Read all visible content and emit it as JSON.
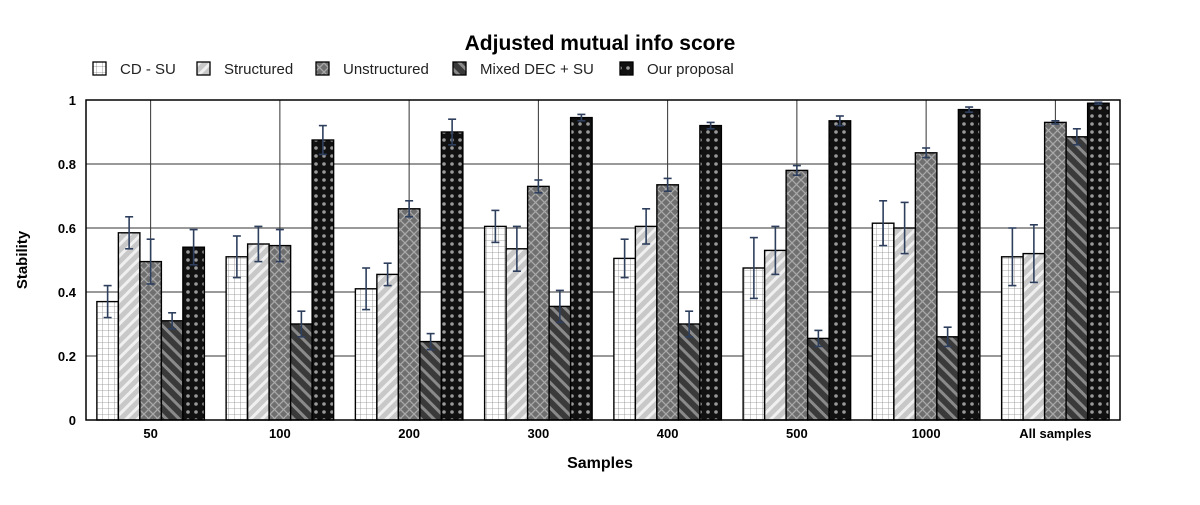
{
  "chart_data": {
    "type": "bar",
    "title": "Adjusted mutual info score",
    "xlabel": "Samples",
    "ylabel": "Stability",
    "ylim": [
      0,
      1
    ],
    "yticks": [
      0,
      0.2,
      0.4,
      0.6,
      0.8,
      1
    ],
    "ytick_labels": [
      "0",
      "0.2",
      "0.4",
      "0.6",
      "0.8",
      "1"
    ],
    "grid": true,
    "legend_position": "top-left",
    "categories": [
      "50",
      "100",
      "200",
      "300",
      "400",
      "500",
      "1000",
      "All samples"
    ],
    "series": [
      {
        "name": "CD - SU",
        "pattern": "grid",
        "values": [
          0.37,
          0.51,
          0.41,
          0.605,
          0.505,
          0.475,
          0.615,
          0.51
        ],
        "error": [
          0.05,
          0.065,
          0.065,
          0.05,
          0.06,
          0.095,
          0.07,
          0.09
        ]
      },
      {
        "name": "Structured",
        "pattern": "diagonal-light",
        "values": [
          0.585,
          0.55,
          0.455,
          0.535,
          0.605,
          0.53,
          0.6,
          0.52
        ],
        "error": [
          0.05,
          0.055,
          0.035,
          0.07,
          0.055,
          0.075,
          0.08,
          0.09
        ]
      },
      {
        "name": "Unstructured",
        "pattern": "crosshatch",
        "values": [
          0.495,
          0.545,
          0.66,
          0.73,
          0.735,
          0.78,
          0.835,
          0.93
        ],
        "error": [
          0.07,
          0.05,
          0.025,
          0.02,
          0.02,
          0.015,
          0.015,
          0.005
        ]
      },
      {
        "name": "Mixed DEC + SU",
        "pattern": "diagonal-dark",
        "values": [
          0.31,
          0.3,
          0.245,
          0.355,
          0.3,
          0.255,
          0.26,
          0.885
        ],
        "error": [
          0.025,
          0.04,
          0.025,
          0.05,
          0.04,
          0.025,
          0.03,
          0.025
        ]
      },
      {
        "name": "Our proposal",
        "pattern": "dots",
        "values": [
          0.54,
          0.875,
          0.9,
          0.945,
          0.92,
          0.935,
          0.97,
          0.99
        ],
        "error": [
          0.055,
          0.045,
          0.04,
          0.01,
          0.01,
          0.015,
          0.008,
          0.003
        ]
      }
    ]
  }
}
